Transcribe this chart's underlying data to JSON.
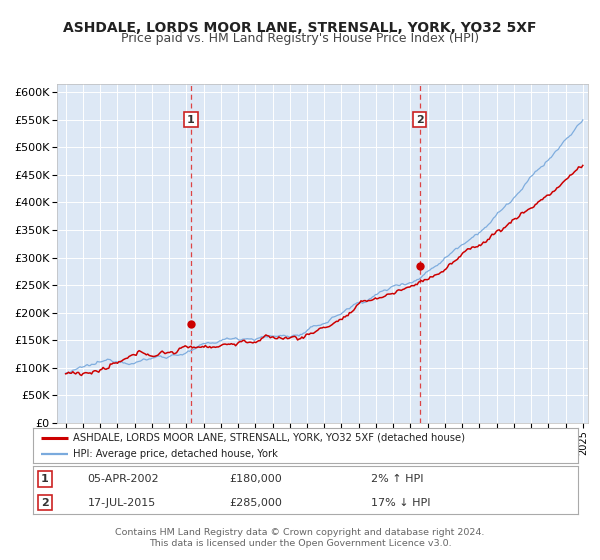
{
  "title": "ASHDALE, LORDS MOOR LANE, STRENSALL, YORK, YO32 5XF",
  "subtitle": "Price paid vs. HM Land Registry's House Price Index (HPI)",
  "ylabel_ticks": [
    "£0",
    "£50K",
    "£100K",
    "£150K",
    "£200K",
    "£250K",
    "£300K",
    "£350K",
    "£400K",
    "£450K",
    "£500K",
    "£550K",
    "£600K"
  ],
  "ytick_values": [
    0,
    50000,
    100000,
    150000,
    200000,
    250000,
    300000,
    350000,
    400000,
    450000,
    500000,
    550000,
    600000
  ],
  "xlim": [
    1994.5,
    2025.3
  ],
  "ylim": [
    0,
    615000
  ],
  "background_color": "#dde8f5",
  "grid_color": "#ffffff",
  "marker1_date": 2002.27,
  "marker1_value": 180000,
  "marker2_date": 2015.54,
  "marker2_value": 285000,
  "vline_color": "#dd4444",
  "sale_color": "#cc0000",
  "hpi_color": "#7aaadd",
  "legend_sale_label": "ASHDALE, LORDS MOOR LANE, STRENSALL, YORK, YO32 5XF (detached house)",
  "legend_hpi_label": "HPI: Average price, detached house, York",
  "table_data": [
    [
      "1",
      "05-APR-2002",
      "£180,000",
      "2% ↑ HPI"
    ],
    [
      "2",
      "17-JUL-2015",
      "£285,000",
      "17% ↓ HPI"
    ]
  ],
  "footer_line1": "Contains HM Land Registry data © Crown copyright and database right 2024.",
  "footer_line2": "This data is licensed under the Open Government Licence v3.0.",
  "title_fontsize": 10,
  "subtitle_fontsize": 9,
  "tick_fontsize": 8,
  "annotation_color": "#cc2222"
}
